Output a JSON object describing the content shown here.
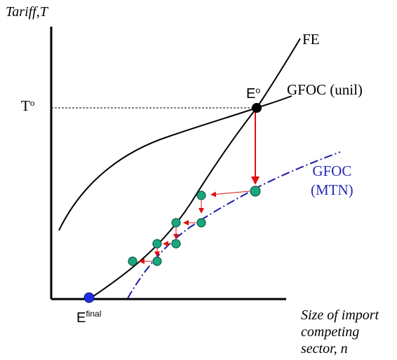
{
  "axes": {
    "y_label": "Tariff,T",
    "x_label_lines": [
      "Size of import",
      "competing",
      "sector, n"
    ]
  },
  "labels": {
    "t_zero": "T",
    "t_zero_sup": "o",
    "fe": "FE",
    "e_zero": "E",
    "e_zero_sup": "o",
    "gfoc_unil": "GFOC (unil)",
    "gfoc_mtn_line1": "GFOC",
    "gfoc_mtn_line2": "(MTN)",
    "e_final": "E",
    "e_final_sup": "final"
  },
  "colors": {
    "axis": "#000000",
    "curve": "#000000",
    "mtn_curve": "#1a1aa8",
    "mtn_label": "#2a2ab8",
    "arrow": "#e01010",
    "dot_fill": "#1aa77e",
    "dot_stroke": "#0b5a45",
    "e_zero_dot": "#000000",
    "e_final_dot": "#1f2fe0"
  }
}
